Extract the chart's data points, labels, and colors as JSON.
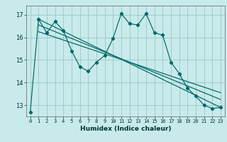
{
  "title": "",
  "xlabel": "Humidex (Indice chaleur)",
  "ylabel": "",
  "bg_color": "#c8eaea",
  "grid_color": "#a0cccc",
  "line_color": "#006666",
  "x_ticks": [
    0,
    1,
    2,
    3,
    4,
    5,
    6,
    7,
    8,
    9,
    10,
    11,
    12,
    13,
    14,
    15,
    16,
    17,
    18,
    19,
    20,
    21,
    22,
    23
  ],
  "y_ticks": [
    13,
    14,
    15,
    16,
    17
  ],
  "ylim": [
    12.5,
    17.4
  ],
  "xlim": [
    -0.5,
    23.5
  ],
  "series1": [
    12.7,
    16.8,
    16.2,
    16.7,
    16.3,
    15.4,
    14.7,
    14.5,
    14.9,
    15.2,
    15.95,
    17.05,
    16.6,
    16.55,
    17.05,
    16.2,
    16.1,
    14.9,
    14.4,
    13.75,
    13.4,
    13.0,
    12.85,
    12.9
  ],
  "series2_x": [
    1,
    23
  ],
  "series2_y": [
    16.8,
    12.9
  ],
  "series3_x": [
    1,
    23
  ],
  "series3_y": [
    16.55,
    13.25
  ],
  "series4_x": [
    1,
    23
  ],
  "series4_y": [
    16.25,
    13.55
  ]
}
